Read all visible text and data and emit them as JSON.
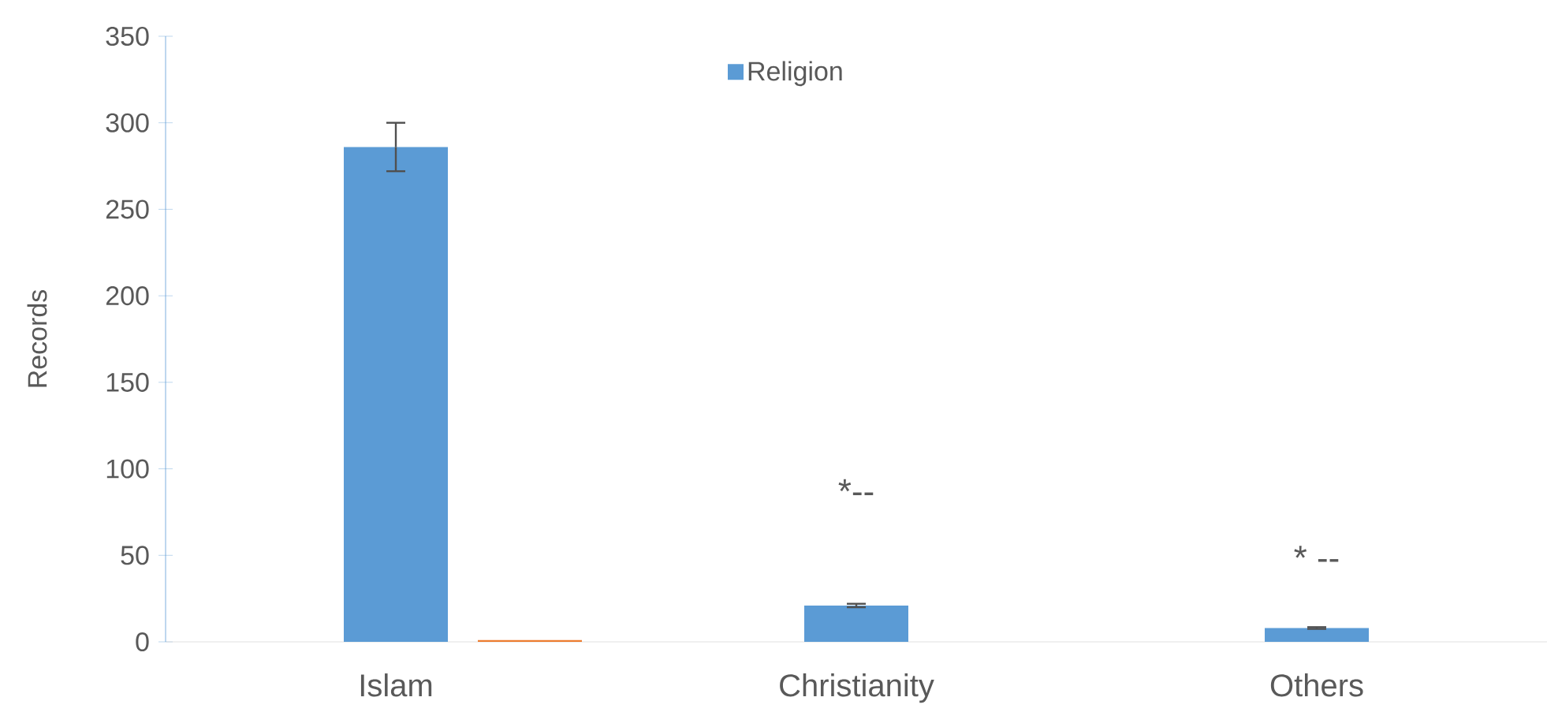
{
  "chart_data": {
    "type": "bar",
    "ylabel": "Records",
    "categories": [
      "Islam",
      "Christianity",
      "Others"
    ],
    "series": [
      {
        "name": "Religion",
        "color": "#5b9bd5",
        "values": [
          286,
          21,
          8
        ],
        "errors": [
          14,
          1,
          0.5
        ]
      },
      {
        "color": "#ed7d31",
        "values": [
          1,
          null,
          null
        ]
      }
    ],
    "ylim": [
      0,
      350
    ],
    "yticks": [
      0,
      50,
      100,
      150,
      200,
      250,
      300,
      350
    ],
    "grid": false,
    "legend": "top",
    "annotations": [
      "*--",
      "* --"
    ]
  }
}
